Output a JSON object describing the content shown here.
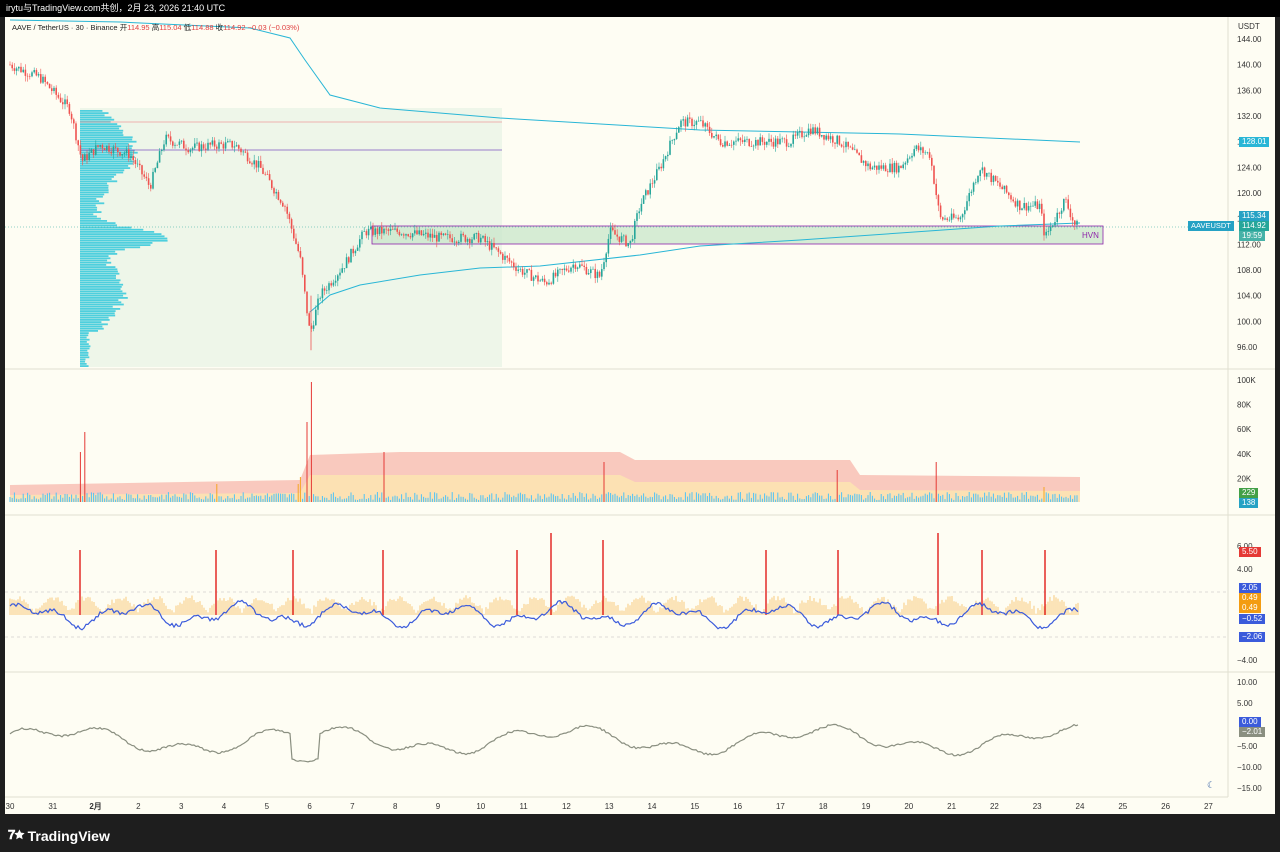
{
  "header": {
    "caption": "irytu与TradingView.com共创，2月 23, 2026 21:40 UTC"
  },
  "legend": {
    "symbol": "AAVE / TetherUS · 30 · Binance",
    "open_label": "开",
    "open": "114.95",
    "high_label": "高",
    "high": "115.04",
    "low_label": "低",
    "low": "114.88",
    "close_label": "收",
    "close": "114.92",
    "change": "−0.03 (−0.03%)"
  },
  "price_axis": {
    "currency": "USDT",
    "ticks": [
      "144.00",
      "140.00",
      "136.00",
      "132.00",
      "128.00",
      "124.00",
      "120.00",
      "116.00",
      "112.00",
      "108.00",
      "104.00",
      "100.00",
      "96.00"
    ]
  },
  "price_tags": {
    "vwap_level": "128.01",
    "upper_level": "115.34",
    "symbol_label": "AAVEUSDT",
    "last_price": "114.92",
    "countdown": "19:59"
  },
  "hvn_label": "HVN",
  "volume_axis": {
    "ticks": [
      "100K",
      "80K",
      "60K",
      "40K",
      "20K"
    ],
    "tag1": "229",
    "tag2": "138"
  },
  "osc_axis": {
    "ticks": [
      "6.00",
      "4.00",
      "−4.00"
    ],
    "tags": [
      "5.50",
      "2.05",
      "0.49",
      "0.49",
      "−0.52",
      "−2.06"
    ]
  },
  "osc2_axis": {
    "ticks": [
      "10.00",
      "5.00",
      "−5.00",
      "−10.00",
      "−15.00"
    ],
    "tags": [
      "0.00",
      "−2.01"
    ]
  },
  "time_axis": {
    "ticks": [
      "30",
      "31",
      "2月",
      "2",
      "3",
      "4",
      "5",
      "6",
      "7",
      "8",
      "9",
      "10",
      "11",
      "12",
      "13",
      "14",
      "15",
      "16",
      "17",
      "18",
      "19",
      "20",
      "21",
      "22",
      "23",
      "24",
      "25",
      "26",
      "27"
    ]
  },
  "brand": {
    "name": "TradingView"
  },
  "colors": {
    "up": "#26a69a",
    "down": "#ef5350",
    "vwap": "#29b6d6",
    "zone": "#c8e6c9",
    "zone_border": "#8e24aa",
    "profile": "#26c6da"
  }
}
